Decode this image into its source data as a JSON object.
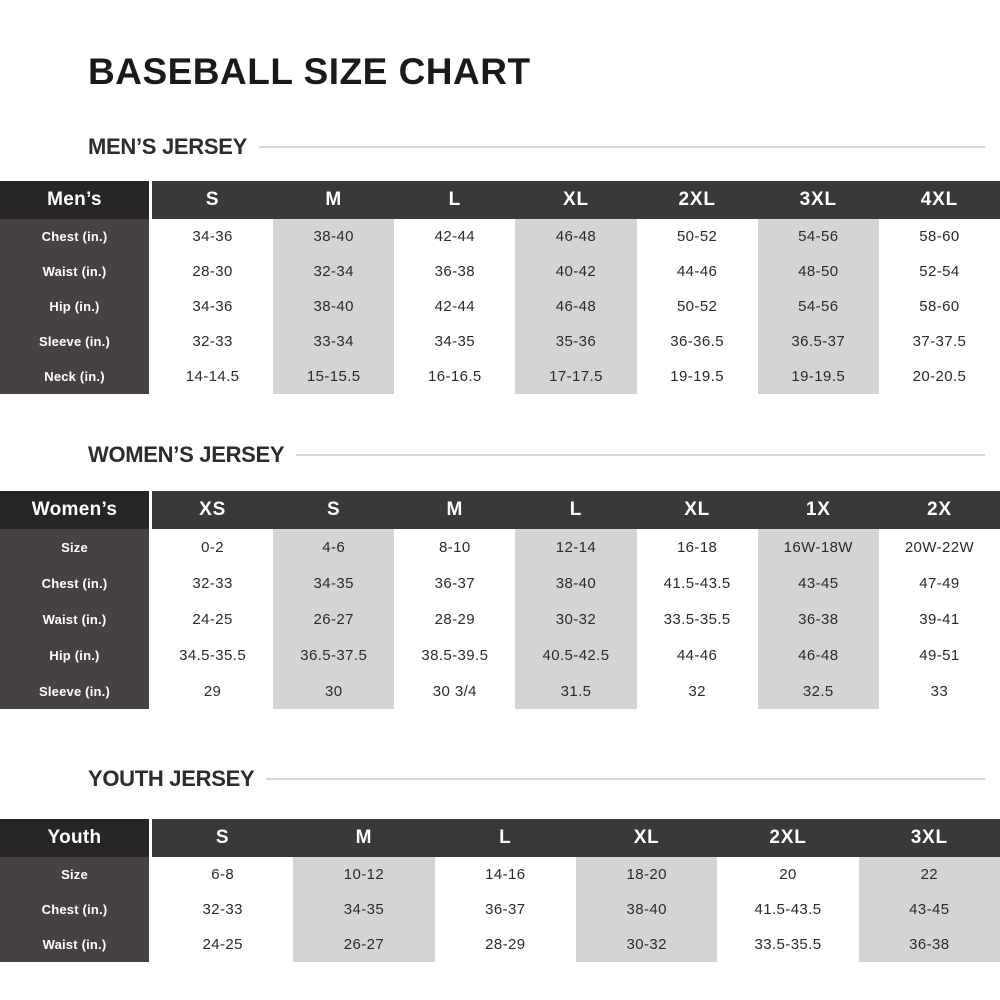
{
  "page": {
    "title": "BASEBALL SIZE CHART"
  },
  "colors": {
    "corner_cell": "#282526",
    "header_row": "#3b3839",
    "row_label_column": "#464244",
    "shaded_column": "#d5d4d5",
    "data_text": "#2c2a2b",
    "heading_rule": "#d8d8d8",
    "title_text": "#1b1a1a",
    "section_heading_text": "#2e2b2c"
  },
  "sections": [
    {
      "heading": "MEN’S JERSEY",
      "table": {
        "corner_label": "Men’s",
        "columns": [
          "S",
          "M",
          "L",
          "XL",
          "2XL",
          "3XL",
          "4XL"
        ],
        "shaded_columns": [
          1,
          3,
          5
        ],
        "rows": [
          {
            "label": "Chest (in.)",
            "values": [
              "34-36",
              "38-40",
              "42-44",
              "46-48",
              "50-52",
              "54-56",
              "58-60"
            ]
          },
          {
            "label": "Waist (in.)",
            "values": [
              "28-30",
              "32-34",
              "36-38",
              "40-42",
              "44-46",
              "48-50",
              "52-54"
            ]
          },
          {
            "label": "Hip (in.)",
            "values": [
              "34-36",
              "38-40",
              "42-44",
              "46-48",
              "50-52",
              "54-56",
              "58-60"
            ]
          },
          {
            "label": "Sleeve (in.)",
            "values": [
              "32-33",
              "33-34",
              "34-35",
              "35-36",
              "36-36.5",
              "36.5-37",
              "37-37.5"
            ]
          },
          {
            "label": "Neck (in.)",
            "values": [
              "14-14.5",
              "15-15.5",
              "16-16.5",
              "17-17.5",
              "19-19.5",
              "19-19.5",
              "20-20.5"
            ]
          }
        ]
      }
    },
    {
      "heading": "WOMEN’S JERSEY",
      "table": {
        "corner_label": "Women’s",
        "columns": [
          "XS",
          "S",
          "M",
          "L",
          "XL",
          "1X",
          "2X"
        ],
        "shaded_columns": [
          1,
          3,
          5
        ],
        "rows": [
          {
            "label": "Size",
            "values": [
              "0-2",
              "4-6",
              "8-10",
              "12-14",
              "16-18",
              "16W-18W",
              "20W-22W"
            ]
          },
          {
            "label": "Chest (in.)",
            "values": [
              "32-33",
              "34-35",
              "36-37",
              "38-40",
              "41.5-43.5",
              "43-45",
              "47-49"
            ]
          },
          {
            "label": "Waist (in.)",
            "values": [
              "24-25",
              "26-27",
              "28-29",
              "30-32",
              "33.5-35.5",
              "36-38",
              "39-41"
            ]
          },
          {
            "label": "Hip (in.)",
            "values": [
              "34.5-35.5",
              "36.5-37.5",
              "38.5-39.5",
              "40.5-42.5",
              "44-46",
              "46-48",
              "49-51"
            ]
          },
          {
            "label": "Sleeve (in.)",
            "values": [
              "29",
              "30",
              "30 3/4",
              "31.5",
              "32",
              "32.5",
              "33"
            ]
          }
        ]
      }
    },
    {
      "heading": "YOUTH JERSEY",
      "table": {
        "corner_label": "Youth",
        "columns": [
          "S",
          "M",
          "L",
          "XL",
          "2XL",
          "3XL"
        ],
        "shaded_columns": [
          1,
          3,
          5
        ],
        "rows": [
          {
            "label": "Size",
            "values": [
              "6-8",
              "10-12",
              "14-16",
              "18-20",
              "20",
              "22"
            ]
          },
          {
            "label": "Chest (in.)",
            "values": [
              "32-33",
              "34-35",
              "36-37",
              "38-40",
              "41.5-43.5",
              "43-45"
            ]
          },
          {
            "label": "Waist (in.)",
            "values": [
              "24-25",
              "26-27",
              "28-29",
              "30-32",
              "33.5-35.5",
              "36-38"
            ]
          }
        ]
      }
    }
  ]
}
